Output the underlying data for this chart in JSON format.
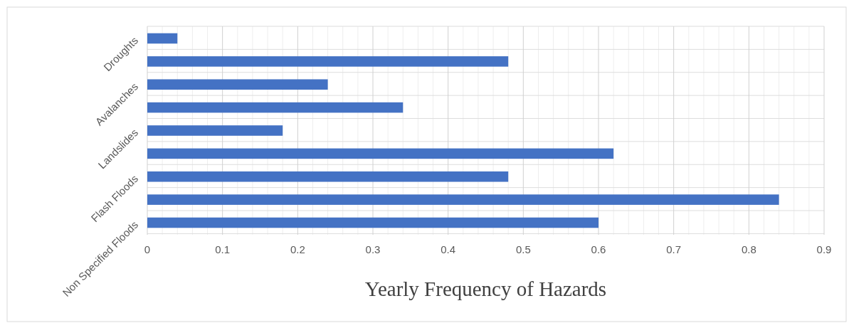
{
  "chart_data": {
    "type": "bar",
    "orientation": "horizontal",
    "xlabel": "Yearly Frequency of Hazards",
    "categories": [
      "Droughts",
      null,
      "Avalanches",
      null,
      "Landslides",
      null,
      "Flash Floods",
      null,
      "Non Specified Floods"
    ],
    "values": [
      0.04,
      0.48,
      0.24,
      0.34,
      0.18,
      0.62,
      0.48,
      0.84,
      0.6
    ],
    "color": "#4472c4",
    "xlim": [
      0,
      0.9
    ],
    "xticks": [
      0,
      0.1,
      0.2,
      0.3,
      0.4,
      0.5,
      0.6,
      0.7,
      0.8,
      0.9
    ],
    "grid": true
  }
}
